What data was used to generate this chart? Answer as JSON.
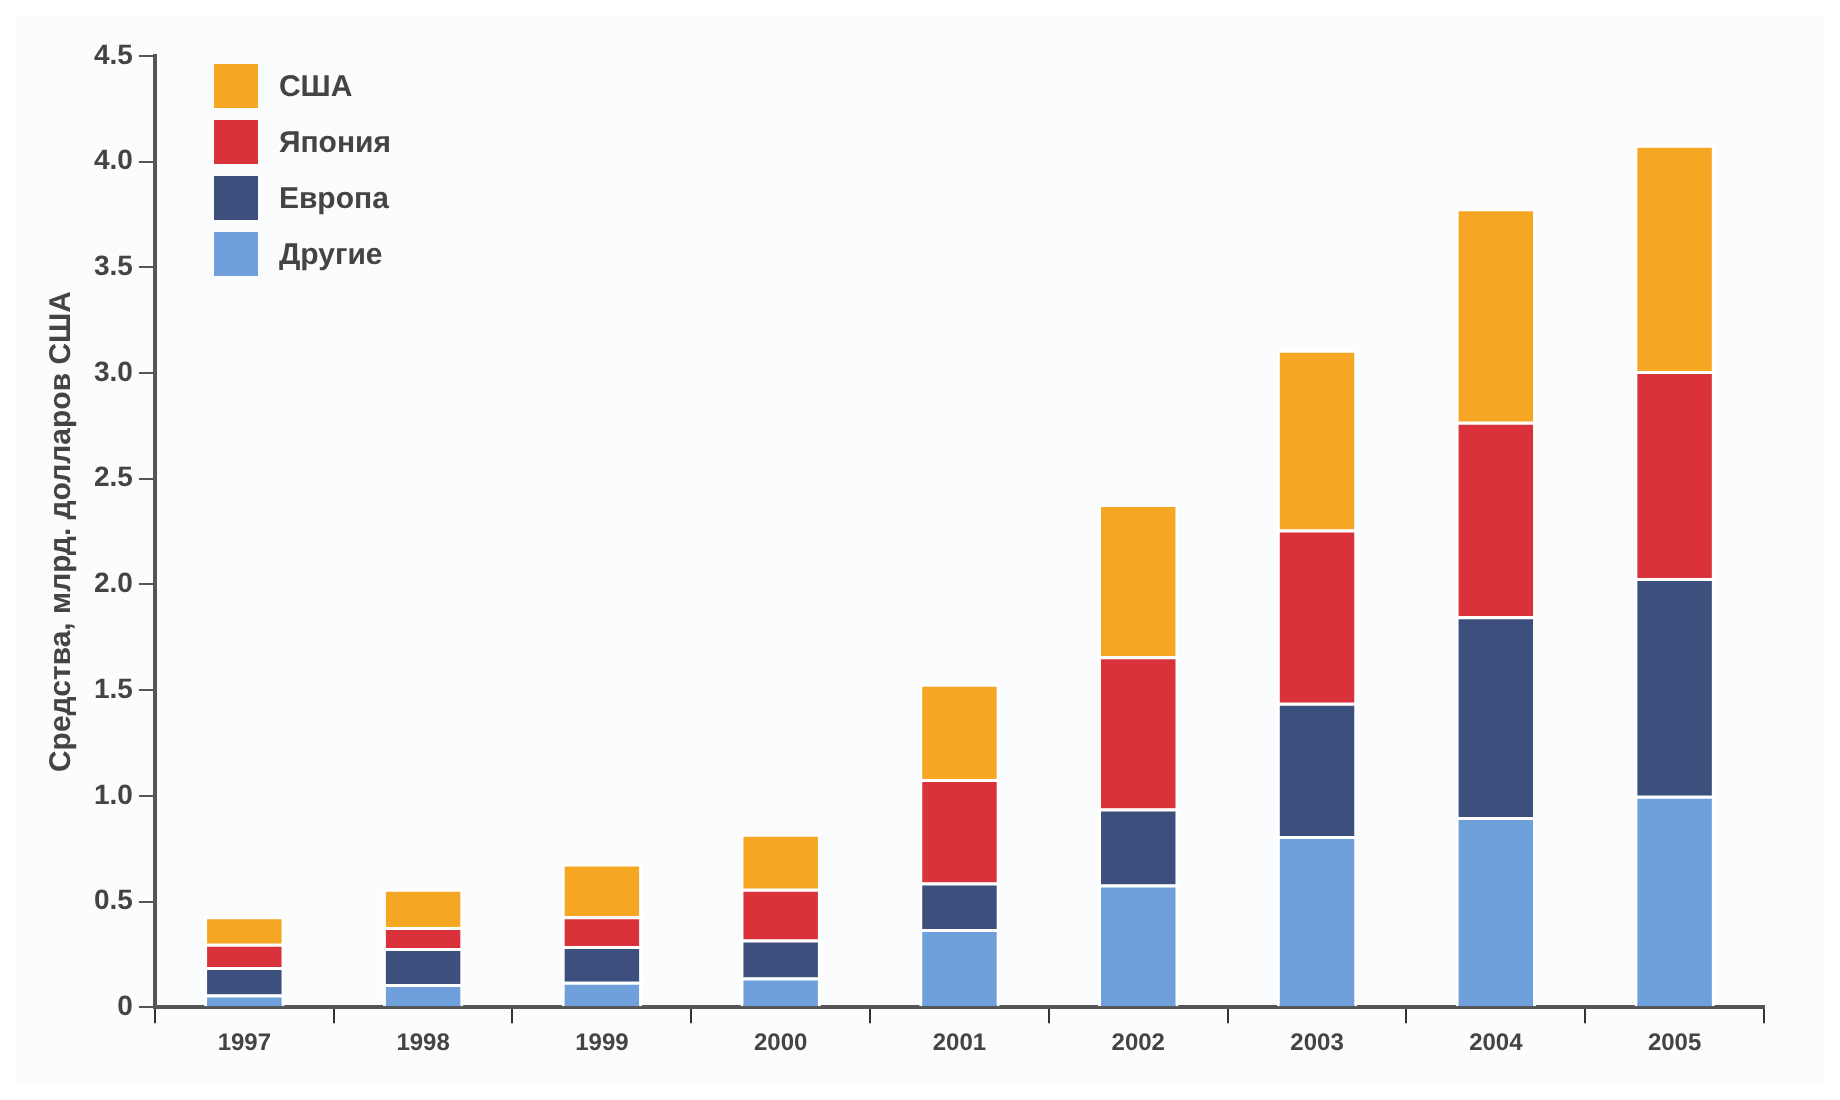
{
  "chart_data": {
    "type": "bar",
    "stacked": true,
    "ylabel": "Средства, млрд. долларов США",
    "categories": [
      "1997",
      "1998",
      "1999",
      "2000",
      "2001",
      "2002",
      "2003",
      "2004",
      "2005"
    ],
    "series": [
      {
        "name": "Другие",
        "color": "#6fa0dc",
        "values": [
          0.06,
          0.11,
          0.12,
          0.14,
          0.37,
          0.58,
          0.81,
          0.9,
          1.0
        ]
      },
      {
        "name": "Европа",
        "color": "#3d4f7c",
        "values": [
          0.13,
          0.17,
          0.17,
          0.18,
          0.22,
          0.36,
          0.63,
          0.95,
          1.03
        ]
      },
      {
        "name": "Япония",
        "color": "#d9323a",
        "values": [
          0.11,
          0.1,
          0.14,
          0.24,
          0.49,
          0.72,
          0.82,
          0.92,
          0.98
        ]
      },
      {
        "name": "США",
        "color": "#f5a623",
        "values": [
          0.13,
          0.18,
          0.25,
          0.26,
          0.45,
          0.72,
          0.85,
          1.01,
          1.07
        ]
      }
    ],
    "ylim": [
      0,
      4.5
    ],
    "yticks": [
      0,
      {
        "value": 0.5,
        "label": "0.5"
      },
      {
        "value": 1,
        "label": "1.0"
      },
      {
        "value": 1.5,
        "label": "1.5"
      },
      {
        "value": 2,
        "label": "2.0"
      },
      {
        "value": 2.5,
        "label": "2.5"
      },
      {
        "value": 3,
        "label": "3.0"
      },
      {
        "value": 3.5,
        "label": "3.5"
      },
      {
        "value": 4,
        "label": "4.0"
      },
      {
        "value": 4.5,
        "label": "4.5"
      }
    ],
    "grid": false,
    "legend": "top left"
  }
}
